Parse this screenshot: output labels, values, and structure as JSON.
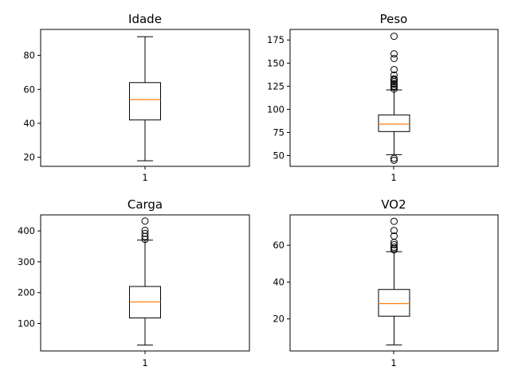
{
  "chart_data": [
    {
      "type": "boxplot",
      "title": "Idade",
      "categories": [
        "1"
      ],
      "ylim": [
        14.7,
        95.3
      ],
      "yticks": [
        20,
        40,
        60,
        80
      ],
      "box": {
        "whisker_low": 18,
        "q1": 42,
        "median": 54,
        "q3": 64,
        "whisker_high": 91
      },
      "outliers": []
    },
    {
      "type": "boxplot",
      "title": "Peso",
      "categories": [
        "1"
      ],
      "ylim": [
        38.4,
        186.4
      ],
      "yticks": [
        50,
        75,
        100,
        125,
        150,
        175
      ],
      "box": {
        "whisker_low": 51,
        "q1": 76,
        "median": 84,
        "q3": 94,
        "whisker_high": 121
      },
      "outliers": [
        45,
        47,
        122,
        124,
        125,
        127,
        128,
        130,
        132,
        133,
        137,
        143,
        155,
        160,
        179
      ]
    },
    {
      "type": "boxplot",
      "title": "Carga",
      "categories": [
        "1"
      ],
      "ylim": [
        11,
        452
      ],
      "yticks": [
        100,
        200,
        300,
        400
      ],
      "box": {
        "whisker_low": 30,
        "q1": 118,
        "median": 170,
        "q3": 220,
        "whisker_high": 370
      },
      "outliers": [
        373,
        382,
        392,
        402,
        432
      ]
    },
    {
      "type": "boxplot",
      "title": "VO2",
      "categories": [
        "1"
      ],
      "ylim": [
        2.6,
        76.5
      ],
      "yticks": [
        20,
        40,
        60
      ],
      "box": {
        "whisker_low": 5.9,
        "q1": 21.5,
        "median": 28.3,
        "q3": 36,
        "whisker_high": 56.5
      },
      "outliers": [
        57.5,
        58.2,
        59,
        60.3,
        61.5,
        65,
        68,
        73
      ]
    }
  ],
  "colors": {
    "median": "#ff7f0e",
    "axes": "#000000",
    "background": "#ffffff"
  }
}
